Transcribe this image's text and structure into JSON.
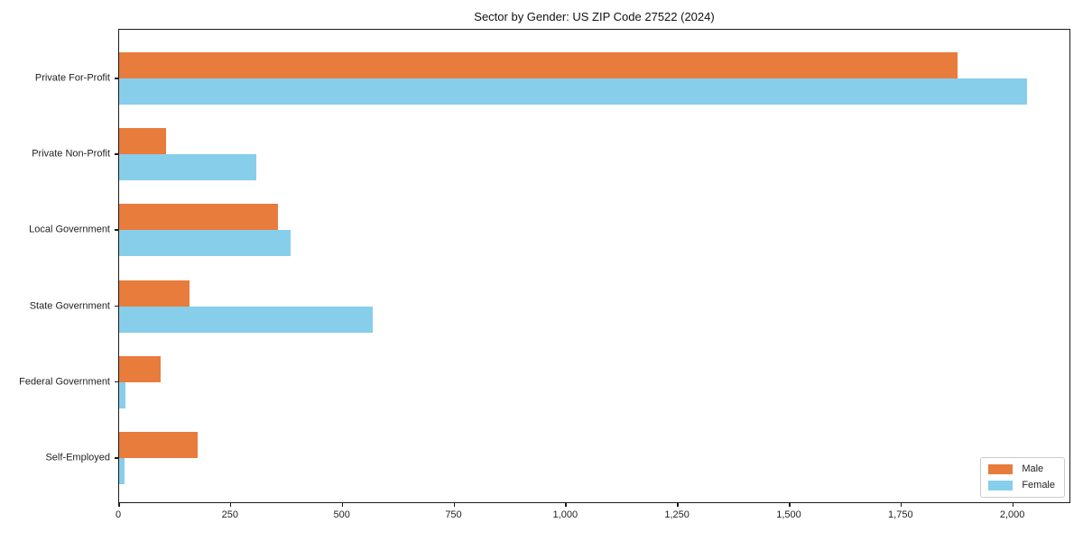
{
  "title": "Sector by Gender: US ZIP Code 27522 (2024)",
  "chart_data": {
    "type": "bar",
    "orientation": "horizontal",
    "title": "Sector by Gender: US ZIP Code 27522 (2024)",
    "categories": [
      "Private For-Profit",
      "Private Non-Profit",
      "Local Government",
      "State Government",
      "Federal Government",
      "Self-Employed"
    ],
    "series": [
      {
        "name": "Male",
        "color": "#e87c3c",
        "values": [
          1875,
          105,
          355,
          158,
          92,
          175
        ]
      },
      {
        "name": "Female",
        "color": "#87ceeb",
        "values": [
          2030,
          307,
          383,
          567,
          15,
          13
        ]
      }
    ],
    "xlabel": "",
    "ylabel": "",
    "xlim": [
      0,
      2130
    ],
    "xticks": {
      "values": [
        0,
        250,
        500,
        750,
        1000,
        1250,
        1500,
        1750,
        2000
      ],
      "labels": [
        "0",
        "250",
        "500",
        "750",
        "1,000",
        "1,250",
        "1,500",
        "1,750",
        "2,000"
      ]
    },
    "grid": false,
    "legend": {
      "position": "lower right",
      "entries": [
        "Male",
        "Female"
      ]
    }
  }
}
